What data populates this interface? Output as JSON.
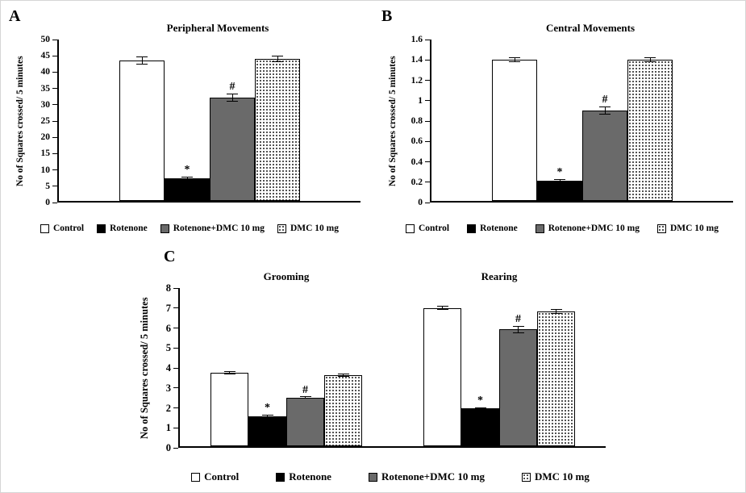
{
  "styles": {
    "colors": {
      "background": "#ffffff",
      "axis": "#000000",
      "bar_black": "#000000",
      "bar_gray": "#6a6a6a",
      "bar_white": "#ffffff",
      "dot_pattern": "#333333"
    }
  },
  "series": [
    {
      "name": "Control",
      "fill": "control"
    },
    {
      "name": "Rotenone",
      "fill": "solid"
    },
    {
      "name": "Rotenone+DMC 10 mg",
      "fill": "gray"
    },
    {
      "name": "DMC 10 mg",
      "fill": "dots"
    }
  ],
  "chart_data": [
    {
      "type": "bar",
      "panel": "A",
      "title": "Peripheral Movements",
      "ylabel": "No of Squares crossed/ 5 minutes",
      "ylim": [
        0,
        50
      ],
      "yticks": [
        "0",
        "5",
        "10",
        "15",
        "20",
        "25",
        "30",
        "35",
        "40",
        "45",
        "50"
      ],
      "grid": false,
      "legend_position": "bottom",
      "categories": [
        "Control",
        "Rotenone",
        "Rotenone+DMC 10 mg",
        "DMC 10 mg"
      ],
      "groups": [
        {
          "label": "",
          "values": [
            43.5,
            7,
            32,
            44
          ],
          "errors": [
            1.2,
            0.5,
            1.2,
            1.0
          ],
          "annotations": [
            "",
            "*",
            "#",
            ""
          ]
        }
      ],
      "legend": [
        "Control",
        "Rotenone",
        "Rotenone+DMC 10 mg",
        "DMC 10 mg"
      ]
    },
    {
      "type": "bar",
      "panel": "B",
      "title": "Central Movements",
      "ylabel": "No of Squares crossed/ 5 minutes",
      "ylim": [
        0,
        1.6
      ],
      "yticks": [
        "0",
        "0.2",
        "0.4",
        "0.6",
        "0.8",
        "1",
        "1.2",
        "1.4",
        "1.6"
      ],
      "grid": false,
      "legend_position": "bottom",
      "categories": [
        "Control",
        "Rotenone",
        "Rotenone+DMC 10 mg",
        "DMC 10 mg"
      ],
      "groups": [
        {
          "label": "",
          "values": [
            1.4,
            0.2,
            0.9,
            1.4
          ],
          "errors": [
            0.025,
            0.02,
            0.04,
            0.025
          ],
          "annotations": [
            "",
            "*",
            "#",
            ""
          ]
        }
      ],
      "legend": [
        "Control",
        "Rotenone",
        "Rotenone+DMC 10 mg",
        "DMC 10 mg"
      ]
    },
    {
      "type": "bar",
      "panel": "C",
      "title": "",
      "ylabel": "No of Squares crossed/ 5 minutes",
      "ylim": [
        0,
        8
      ],
      "yticks": [
        "0",
        "1",
        "2",
        "3",
        "4",
        "5",
        "6",
        "7",
        "8"
      ],
      "grid": false,
      "legend_position": "bottom",
      "categories": [
        "Control",
        "Rotenone",
        "Rotenone+DMC 10 mg",
        "DMC 10 mg"
      ],
      "groups": [
        {
          "label": "Grooming",
          "values": [
            3.7,
            1.5,
            2.45,
            3.6
          ],
          "errors": [
            0.08,
            0.08,
            0.06,
            0.08
          ],
          "annotations": [
            "",
            "*",
            "#",
            ""
          ]
        },
        {
          "label": "Rearing",
          "values": [
            7.0,
            1.9,
            5.9,
            6.8
          ],
          "errors": [
            0.12,
            0.08,
            0.2,
            0.12
          ],
          "annotations": [
            "",
            "*",
            "#",
            ""
          ]
        }
      ],
      "legend": [
        "Control",
        "Rotenone",
        "Rotenone+DMC 10 mg",
        "DMC 10 mg"
      ]
    }
  ]
}
